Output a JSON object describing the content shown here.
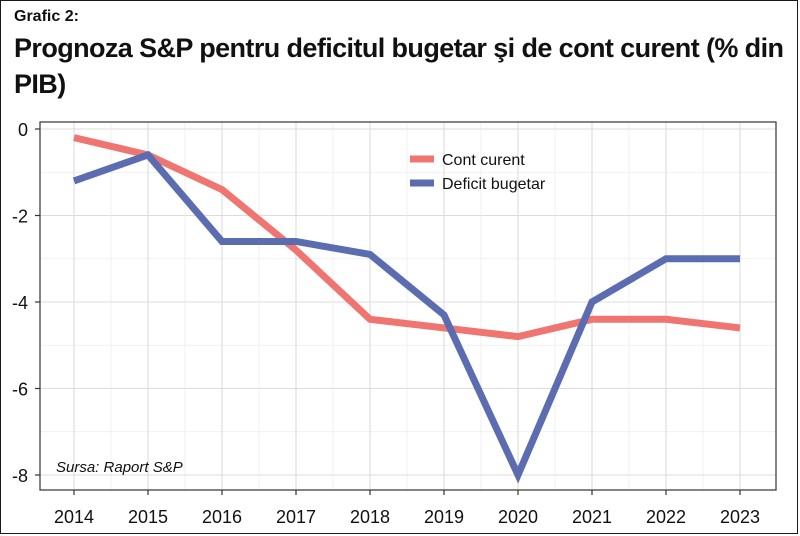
{
  "header": {
    "label": "Grafic 2:",
    "title": "Prognoza S&P pentru deficitul bugetar şi de cont curent (% din PIB)"
  },
  "source": "Sursa: Raport S&P",
  "chart_data": {
    "type": "line",
    "x": [
      "2014",
      "2015",
      "2016",
      "2017",
      "2018",
      "2019",
      "2020",
      "2021",
      "2022",
      "2023"
    ],
    "ylim": [
      -8,
      0
    ],
    "yticks": [
      0,
      -2,
      -4,
      -6,
      -8
    ],
    "ytick_labels": [
      "0",
      "-2",
      "-4",
      "-6",
      "-8"
    ],
    "grid": true,
    "legend_position": "top-center",
    "series": [
      {
        "name": "Cont curent",
        "color": "#f07470",
        "values": [
          -0.2,
          -0.6,
          -1.4,
          -2.8,
          -4.4,
          -4.6,
          -4.8,
          -4.4,
          -4.4,
          -4.6
        ]
      },
      {
        "name": "Deficit bugetar",
        "color": "#5b6db0",
        "values": [
          -1.2,
          -0.6,
          -2.6,
          -2.6,
          -2.9,
          -4.3,
          -8.0,
          -4.0,
          -3.0,
          -3.0
        ]
      }
    ]
  }
}
